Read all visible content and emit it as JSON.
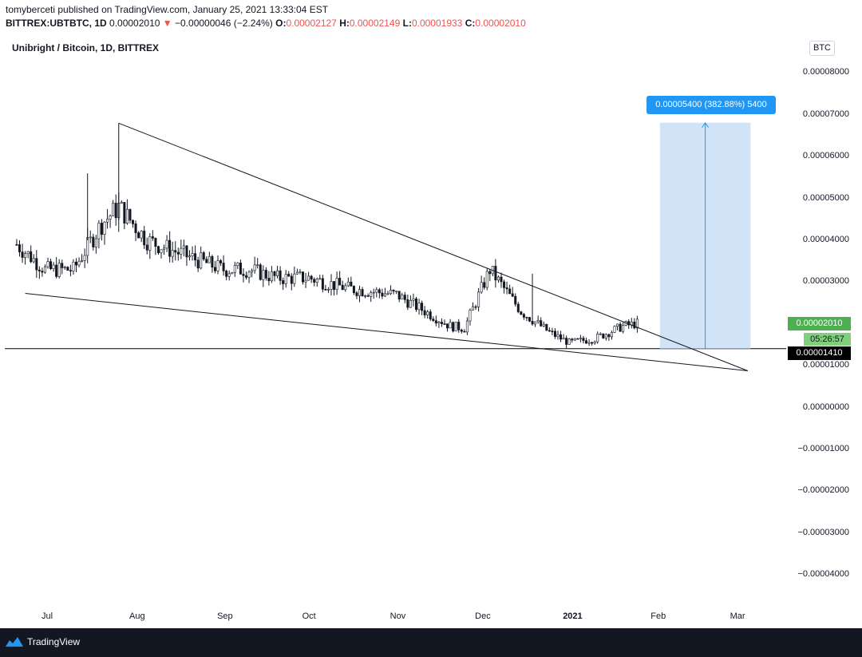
{
  "header": {
    "line1": "tomyberceti published on TradingView.com, January 25, 2021 13:33:04 EST",
    "symbol": "BITTREX:UBTBTC, 1D",
    "last": "0.00002010",
    "arrow": "▼",
    "change": "−0.00000046 (−2.24%)",
    "o_label": "O:",
    "o_value": "0.00002127",
    "h_label": "H:",
    "h_value": "0.00002149",
    "l_label": "L:",
    "l_value": "0.00001933",
    "c_label": "C:",
    "c_value": "0.00002010"
  },
  "chart_title": "Unibright / Bitcoin, 1D, BITTREX",
  "currency_badge": "BTC",
  "footer": {
    "brand": "TradingView",
    "icon": "tradingview-logo-icon"
  },
  "colors": {
    "up": "#131722",
    "down": "#131722",
    "measure": "#2196f3",
    "measure_fill": "#bbdefb",
    "last_price": "#4caf50",
    "line_price": "#000000"
  },
  "chart_data": {
    "type": "candlestick",
    "title": "Unibright / Bitcoin, 1D, BITTREX",
    "x_ticks": [
      "Jul",
      "Aug",
      "Sep",
      "Oct",
      "Nov",
      "Dec",
      "2021",
      "Feb",
      "Mar"
    ],
    "y_ticks": [
      "0.00008000",
      "0.00007000",
      "0.00006000",
      "0.00005000",
      "0.00004000",
      "0.00003000",
      "0.00002000",
      "0.00001000",
      "0.00000000",
      "−0.00001000",
      "−0.00002000",
      "−0.00003000",
      "−0.00004000"
    ],
    "ylim": [
      -4.65e-05,
      8.7e-05
    ],
    "last_price": "0.00002010",
    "countdown": "05:26:57",
    "horizontal_line": "0.00001410",
    "measure_label": "0.00005400 (382.88%) 5400",
    "trendlines": [
      {
        "name": "upper",
        "from": [
          "2020-07-26",
          6.8e-05
        ],
        "to": [
          "2021-03-05",
          8.8e-06
        ]
      },
      {
        "name": "lower",
        "from": [
          "2020-06-23",
          2.73e-05
        ],
        "to": [
          "2021-03-05",
          8.8e-06
        ]
      }
    ],
    "price_series_approx": [
      {
        "date": "2020-06-20",
        "close": 3.9e-05
      },
      {
        "date": "2020-06-30",
        "close": 3.3e-05
      },
      {
        "date": "2020-07-10",
        "close": 3.3e-05
      },
      {
        "date": "2020-07-20",
        "close": 4.4e-05
      },
      {
        "date": "2020-07-26",
        "close": 4.8e-05
      },
      {
        "date": "2020-08-05",
        "close": 4e-05
      },
      {
        "date": "2020-08-20",
        "close": 3.6e-05
      },
      {
        "date": "2020-09-01",
        "close": 3.3e-05
      },
      {
        "date": "2020-09-10",
        "close": 3.3e-05
      },
      {
        "date": "2020-09-20",
        "close": 3.1e-05
      },
      {
        "date": "2020-10-01",
        "close": 3.1e-05
      },
      {
        "date": "2020-10-15",
        "close": 2.85e-05
      },
      {
        "date": "2020-11-01",
        "close": 2.7e-05
      },
      {
        "date": "2020-11-20",
        "close": 1.95e-05
      },
      {
        "date": "2020-11-25",
        "close": 1.9e-05
      },
      {
        "date": "2020-12-04",
        "close": 3.3e-05
      },
      {
        "date": "2020-12-15",
        "close": 2.3e-05
      },
      {
        "date": "2020-12-25",
        "close": 1.8e-05
      },
      {
        "date": "2021-01-01",
        "close": 1.55e-05
      },
      {
        "date": "2021-01-10",
        "close": 1.65e-05
      },
      {
        "date": "2021-01-20",
        "close": 1.95e-05
      },
      {
        "date": "2021-01-25",
        "close": 2.01e-05
      }
    ]
  }
}
